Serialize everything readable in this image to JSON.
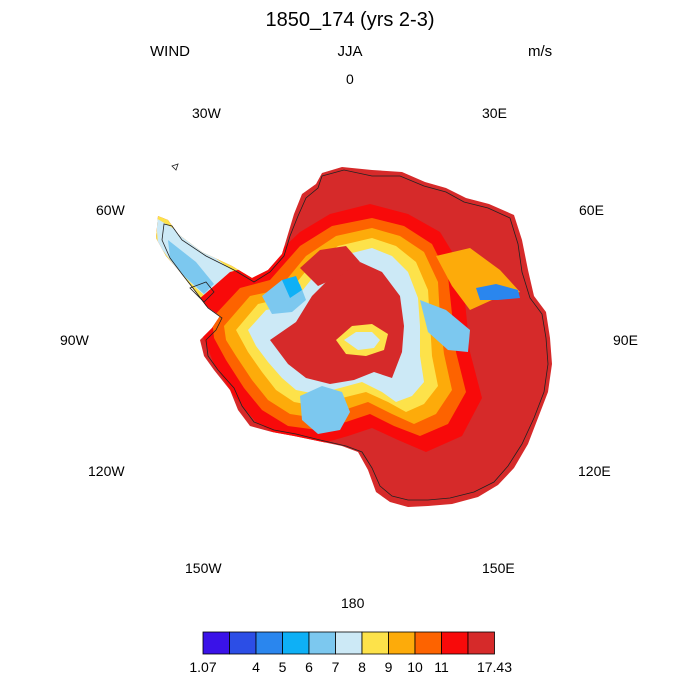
{
  "header": {
    "title": "1850_174 (yrs 2-3)",
    "variable": "WIND",
    "season": "JJA",
    "units": "m/s"
  },
  "longitude_labels": {
    "lon_0": "0",
    "lon_30e": "30E",
    "lon_60e": "60E",
    "lon_90e": "90E",
    "lon_120e": "120E",
    "lon_150e": "150E",
    "lon_180": "180",
    "lon_150w": "150W",
    "lon_120w": "120W",
    "lon_90w": "90W",
    "lon_60w": "60W",
    "lon_30w": "30W"
  },
  "colorbar": {
    "colors": [
      "#3a12e8",
      "#2c4ee6",
      "#2a86ee",
      "#0eb0f6",
      "#7cc8ef",
      "#cce9f6",
      "#fde24a",
      "#fdab0a",
      "#fd6300",
      "#f80a0a",
      "#d62a2a"
    ],
    "labels": [
      "1.07",
      "4",
      "5",
      "6",
      "7",
      "8",
      "9",
      "10",
      "11",
      "17.43"
    ]
  },
  "map": {
    "projection": "south-polar-stereographic",
    "field_colors": {
      "very_high": "#d62a2a",
      "high": "#f80a0a",
      "medium_high": "#fd6300",
      "medium": "#fdab0a",
      "moderate": "#fde24a",
      "low": "#cce9f6",
      "lower": "#7cc8ef",
      "lowest": "#0eb0f6",
      "band": "#2a86ee"
    }
  }
}
